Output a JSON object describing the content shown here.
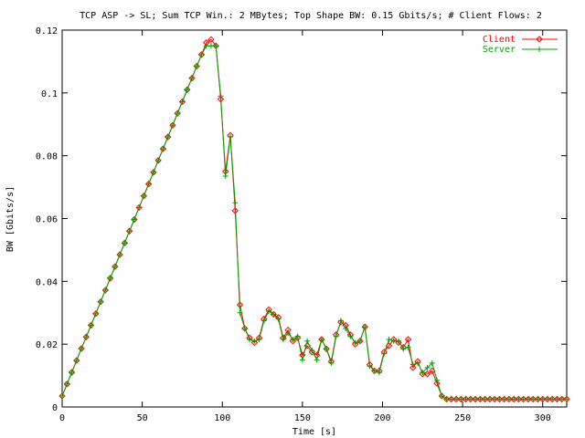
{
  "chart_data": {
    "type": "line",
    "title": "TCP ASP -> SL; Sum TCP Win.: 2 MBytes; Top Shape BW: 0.15 Gbits/s; # Client Flows: 2",
    "xlabel": "Time [s]",
    "ylabel": "BW [Gbits/s]",
    "xlim": [
      0,
      315
    ],
    "ylim": [
      0,
      0.12
    ],
    "xticks": [
      0,
      50,
      100,
      150,
      200,
      250,
      300
    ],
    "yticks": [
      0,
      0.02,
      0.04,
      0.06,
      0.08,
      0.1,
      0.12
    ],
    "grid": false,
    "legend": "top-right",
    "series": [
      {
        "name": "Client",
        "color": "#ff0000",
        "marker": "diamond",
        "x": [
          0,
          3,
          6,
          9,
          12,
          15,
          18,
          21,
          24,
          27,
          30,
          33,
          36,
          39,
          42,
          45,
          48,
          51,
          54,
          57,
          60,
          63,
          66,
          69,
          72,
          75,
          78,
          81,
          84,
          87,
          90,
          93,
          96,
          99,
          102,
          105,
          108,
          111,
          114,
          117,
          120,
          123,
          126,
          129,
          132,
          135,
          138,
          141,
          144,
          147,
          150,
          153,
          156,
          159,
          162,
          165,
          168,
          171,
          174,
          177,
          180,
          183,
          186,
          189,
          192,
          195,
          198,
          201,
          204,
          207,
          210,
          213,
          216,
          219,
          222,
          225,
          228,
          231,
          234,
          237,
          240,
          243,
          246,
          249,
          252,
          255,
          258,
          261,
          264,
          267,
          270,
          273,
          276,
          279,
          282,
          285,
          288,
          291,
          294,
          297,
          300,
          303,
          306,
          309,
          312,
          315
        ],
        "y": [
          0.0035,
          0.0073,
          0.011,
          0.0148,
          0.0186,
          0.0223,
          0.026,
          0.0297,
          0.0335,
          0.0372,
          0.041,
          0.0447,
          0.0485,
          0.0522,
          0.056,
          0.0597,
          0.0635,
          0.0672,
          0.071,
          0.0747,
          0.0785,
          0.0822,
          0.086,
          0.0897,
          0.0935,
          0.0972,
          0.101,
          0.1047,
          0.1085,
          0.1122,
          0.116,
          0.117,
          0.115,
          0.098,
          0.075,
          0.0865,
          0.0625,
          0.0325,
          0.025,
          0.022,
          0.0205,
          0.022,
          0.028,
          0.031,
          0.0295,
          0.0285,
          0.022,
          0.0245,
          0.021,
          0.022,
          0.0165,
          0.0195,
          0.0175,
          0.0165,
          0.0215,
          0.0185,
          0.0145,
          0.023,
          0.027,
          0.026,
          0.023,
          0.02,
          0.021,
          0.0255,
          0.0135,
          0.0115,
          0.0115,
          0.0175,
          0.0195,
          0.0215,
          0.0205,
          0.019,
          0.0215,
          0.0125,
          0.0145,
          0.0105,
          0.0105,
          0.0115,
          0.0075,
          0.0035,
          0.0025,
          0.0025,
          0.0025,
          0.0025,
          0.0025,
          0.0025,
          0.0025,
          0.0025,
          0.0025,
          0.0025,
          0.0025,
          0.0025,
          0.0025,
          0.0025,
          0.0025,
          0.0025,
          0.0025,
          0.0025,
          0.0025,
          0.0025,
          0.0025,
          0.0025,
          0.0025,
          0.0025,
          0.0025,
          0.0025
        ]
      },
      {
        "name": "Server",
        "color": "#00a000",
        "marker": "plus",
        "x": [
          0,
          3,
          6,
          9,
          12,
          15,
          18,
          21,
          24,
          27,
          30,
          33,
          36,
          39,
          42,
          45,
          48,
          51,
          54,
          57,
          60,
          63,
          66,
          69,
          72,
          75,
          78,
          81,
          84,
          87,
          90,
          93,
          96,
          99,
          102,
          105,
          108,
          111,
          114,
          117,
          120,
          123,
          126,
          129,
          132,
          135,
          138,
          141,
          144,
          147,
          150,
          153,
          156,
          159,
          162,
          165,
          168,
          171,
          174,
          177,
          180,
          183,
          186,
          189,
          192,
          195,
          198,
          201,
          204,
          207,
          210,
          213,
          216,
          219,
          222,
          225,
          228,
          231,
          234,
          237,
          240,
          243,
          246,
          249,
          252,
          255,
          258,
          261,
          264,
          267,
          270,
          273,
          276,
          279,
          282,
          285,
          288,
          291,
          294,
          297,
          300,
          303,
          306,
          309,
          312,
          315
        ],
        "y": [
          0.0035,
          0.0073,
          0.011,
          0.0148,
          0.0186,
          0.0223,
          0.026,
          0.0297,
          0.0335,
          0.0372,
          0.041,
          0.0447,
          0.0485,
          0.0522,
          0.056,
          0.0597,
          0.0635,
          0.0672,
          0.071,
          0.0747,
          0.0785,
          0.0822,
          0.086,
          0.0897,
          0.0935,
          0.0972,
          0.101,
          0.1047,
          0.1085,
          0.1122,
          0.115,
          0.115,
          0.115,
          0.099,
          0.0735,
          0.086,
          0.065,
          0.03,
          0.025,
          0.0215,
          0.021,
          0.0215,
          0.0275,
          0.0305,
          0.0295,
          0.028,
          0.0215,
          0.0235,
          0.0215,
          0.0225,
          0.015,
          0.021,
          0.018,
          0.015,
          0.0215,
          0.0185,
          0.014,
          0.0225,
          0.0275,
          0.025,
          0.0225,
          0.0205,
          0.021,
          0.0255,
          0.013,
          0.0115,
          0.011,
          0.017,
          0.0215,
          0.021,
          0.021,
          0.0185,
          0.019,
          0.0135,
          0.014,
          0.011,
          0.0125,
          0.014,
          0.0085,
          0.0035,
          0.0025,
          0.0025,
          0.0025,
          0.0025,
          0.0025,
          0.0025,
          0.0025,
          0.0025,
          0.0025,
          0.0025,
          0.0025,
          0.0025,
          0.0025,
          0.0025,
          0.0025,
          0.0025,
          0.0025,
          0.0025,
          0.0025,
          0.0025,
          0.0025,
          0.0025,
          0.0025,
          0.0025,
          0.0025,
          0.0025
        ]
      }
    ]
  }
}
